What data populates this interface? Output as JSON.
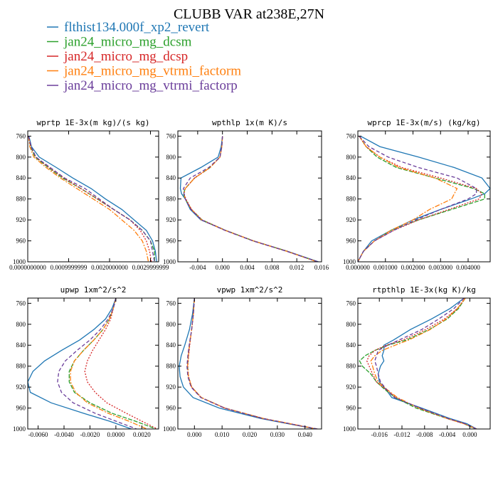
{
  "figure": {
    "title": "CLUBB VAR at238E,27N"
  },
  "legend": [
    {
      "name": "flthist134.000f_xp2_revert",
      "color": "#1f77b4",
      "dash": ""
    },
    {
      "name": "jan24_micro_mg_dcsm",
      "color": "#2ca02c",
      "dash": "6,2"
    },
    {
      "name": "jan24_micro_mg_dcsp",
      "color": "#d62728",
      "dash": "2,2"
    },
    {
      "name": "jan24_micro_mg_vtrmi_factorm",
      "color": "#ff7f0e",
      "dash": "7,2,2,2"
    },
    {
      "name": "jan24_micro_mg_vtrmi_factorp",
      "color": "#6a3d9a",
      "dash": "5,3"
    }
  ],
  "chart_data": [
    {
      "type": "line",
      "title": "wprtp  1E-3x(m kg)/(s kg)",
      "xlim": [
        0,
        0.0032
      ],
      "ylim": [
        1000,
        750
      ],
      "xticks": [
        0.0,
        0.001,
        0.002,
        0.003
      ],
      "xticklabels": [
        "0.0000000000",
        "0.0009999999",
        "0.0020000000",
        "0.0029999999"
      ],
      "yticks": [
        760,
        800,
        840,
        880,
        920,
        960,
        1000
      ],
      "y": [
        760,
        780,
        800,
        820,
        840,
        860,
        880,
        900,
        920,
        940,
        960,
        980,
        1000
      ],
      "series": [
        {
          "name": "flthist134.000f_xp2_revert",
          "values": [
            3e-05,
            9e-05,
            0.00028,
            0.0007,
            0.0011,
            0.00155,
            0.0019,
            0.0023,
            0.0026,
            0.0029,
            0.00305,
            0.00312,
            0.00315
          ]
        },
        {
          "name": "jan24_micro_mg_dcsm",
          "values": [
            2e-05,
            7e-05,
            0.00018,
            0.0005,
            0.00085,
            0.0013,
            0.0017,
            0.0021,
            0.0025,
            0.0028,
            0.003,
            0.0031,
            0.0031
          ]
        },
        {
          "name": "jan24_micro_mg_dcsp",
          "values": [
            2e-05,
            8e-05,
            0.0002,
            0.00052,
            0.00088,
            0.0013,
            0.0017,
            0.0021,
            0.0025,
            0.00275,
            0.0029,
            0.00298,
            0.00302
          ]
        },
        {
          "name": "jan24_micro_mg_vtrmi_factorm",
          "values": [
            2e-05,
            5e-05,
            0.00015,
            0.00045,
            0.0008,
            0.0012,
            0.0016,
            0.002,
            0.0023,
            0.0026,
            0.0028,
            0.0029,
            0.00295
          ]
        },
        {
          "name": "jan24_micro_mg_vtrmi_factorp",
          "values": [
            2e-05,
            8e-05,
            0.0002,
            0.00055,
            0.0009,
            0.0014,
            0.00175,
            0.0021,
            0.0025,
            0.0028,
            0.003,
            0.00305,
            0.0031
          ]
        }
      ]
    },
    {
      "type": "line",
      "title": "wpthlp  1x(m K)/s",
      "xlim": [
        -0.0072,
        0.016
      ],
      "ylim": [
        1000,
        750
      ],
      "xticks": [
        -0.004,
        0.0,
        0.004,
        0.008,
        0.012,
        0.016
      ],
      "xticklabels": [
        "-0.004",
        "0.000",
        "0.004",
        "0.008",
        "0.012",
        "0.016"
      ],
      "yticks": [
        760,
        800,
        840,
        880,
        920,
        960,
        1000
      ],
      "y": [
        760,
        780,
        800,
        820,
        840,
        860,
        870,
        880,
        900,
        920,
        940,
        960,
        980,
        1000
      ],
      "series": [
        {
          "name": "flthist134.000f_xp2_revert",
          "values": [
            0.0,
            -0.0002,
            -0.0007,
            -0.0035,
            -0.0067,
            -0.0068,
            -0.0066,
            -0.006,
            -0.0052,
            -0.0035,
            0.0005,
            0.005,
            0.0105,
            0.0155
          ]
        },
        {
          "name": "jan24_micro_mg_dcsm",
          "values": [
            0.0,
            -0.0001,
            -0.0004,
            -0.002,
            -0.0045,
            -0.006,
            -0.0063,
            -0.006,
            -0.005,
            -0.0033,
            0.0005,
            0.005,
            0.0105,
            0.0153
          ]
        },
        {
          "name": "jan24_micro_mg_dcsp",
          "values": [
            0.0,
            -0.0001,
            -0.0004,
            -0.002,
            -0.0045,
            -0.006,
            -0.0062,
            -0.0059,
            -0.005,
            -0.0033,
            0.0005,
            0.005,
            0.0105,
            0.0153
          ]
        },
        {
          "name": "jan24_micro_mg_vtrmi_factorm",
          "values": [
            0.0,
            -0.0001,
            -0.0004,
            -0.002,
            -0.0045,
            -0.006,
            -0.0062,
            -0.006,
            -0.005,
            -0.0034,
            0.0004,
            0.005,
            0.0104,
            0.0153
          ]
        },
        {
          "name": "jan24_micro_mg_vtrmi_factorp",
          "values": [
            0.0,
            -0.0001,
            -0.0004,
            -0.0022,
            -0.0052,
            -0.0063,
            -0.0062,
            -0.006,
            -0.0051,
            -0.0034,
            0.0004,
            0.0049,
            0.0104,
            0.0154
          ]
        }
      ]
    },
    {
      "type": "line",
      "title": "wprcp  1E-3x(m/s) (kg/kg)",
      "xlim": [
        0,
        0.0048
      ],
      "ylim": [
        1000,
        750
      ],
      "xticks": [
        0.0,
        0.001,
        0.002,
        0.003,
        0.004
      ],
      "xticklabels": [
        "0.000000",
        "0.001000",
        "0.002000",
        "0.003000",
        "0.004000"
      ],
      "yticks": [
        760,
        800,
        840,
        880,
        920,
        960,
        1000
      ],
      "y": [
        760,
        780,
        800,
        820,
        840,
        860,
        870,
        880,
        900,
        920,
        940,
        960,
        980,
        990,
        1000
      ],
      "series": [
        {
          "name": "flthist134.000f_xp2_revert",
          "values": [
            0.0001,
            0.0008,
            0.0022,
            0.0035,
            0.0045,
            0.0048,
            0.0046,
            0.0041,
            0.003,
            0.002,
            0.0012,
            0.0005,
            0.0002,
            0.0001,
            0.0
          ]
        },
        {
          "name": "jan24_micro_mg_dcsm",
          "values": [
            5e-05,
            0.0003,
            0.0007,
            0.0014,
            0.0028,
            0.0042,
            0.0046,
            0.0046,
            0.0034,
            0.0022,
            0.0012,
            0.0006,
            0.0002,
            0.0001,
            0.0
          ]
        },
        {
          "name": "jan24_micro_mg_dcsp",
          "values": [
            5e-05,
            0.0003,
            0.0008,
            0.0016,
            0.003,
            0.0043,
            0.0045,
            0.0044,
            0.0033,
            0.0022,
            0.0013,
            0.0006,
            0.0002,
            0.0001,
            0.0
          ]
        },
        {
          "name": "jan24_micro_mg_vtrmi_factorm",
          "values": [
            5e-05,
            0.0003,
            0.0008,
            0.0015,
            0.0028,
            0.0036,
            0.0035,
            0.0034,
            0.0026,
            0.002,
            0.0012,
            0.0006,
            0.0002,
            0.0001,
            0.0
          ]
        },
        {
          "name": "jan24_micro_mg_vtrmi_factorp",
          "values": [
            5e-05,
            0.0004,
            0.0011,
            0.0022,
            0.0036,
            0.0043,
            0.0043,
            0.004,
            0.003,
            0.0021,
            0.0013,
            0.0006,
            0.0002,
            0.0001,
            0.0
          ]
        }
      ]
    },
    {
      "type": "line",
      "title": "upwp  1xm^2/s^2",
      "xlim": [
        -0.0068,
        0.0033
      ],
      "ylim": [
        1000,
        750
      ],
      "xticks": [
        -0.006,
        -0.004,
        -0.002,
        0.0,
        0.002
      ],
      "xticklabels": [
        "-0.0060",
        "-0.0040",
        "-0.0020",
        "0.0000",
        "0.0020"
      ],
      "yticks": [
        760,
        800,
        840,
        880,
        920,
        960,
        1000
      ],
      "y": [
        750,
        770,
        790,
        810,
        830,
        850,
        870,
        890,
        910,
        930,
        950,
        970,
        985,
        1000
      ],
      "series": [
        {
          "name": "flthist134.000f_xp2_revert",
          "values": [
            0.0,
            -0.0003,
            -0.0008,
            -0.0017,
            -0.0028,
            -0.0042,
            -0.0055,
            -0.0064,
            -0.0068,
            -0.0066,
            -0.005,
            -0.0025,
            -0.0005,
            0.0012
          ]
        },
        {
          "name": "jan24_micro_mg_dcsm",
          "values": [
            0.0,
            -0.0002,
            -0.0005,
            -0.001,
            -0.0017,
            -0.0025,
            -0.0032,
            -0.0036,
            -0.0036,
            -0.0032,
            -0.002,
            -0.0003,
            0.0015,
            0.0031
          ]
        },
        {
          "name": "jan24_micro_mg_dcsp",
          "values": [
            0.0,
            -0.0002,
            -0.0004,
            -0.0008,
            -0.0013,
            -0.0018,
            -0.0022,
            -0.0024,
            -0.0022,
            -0.0016,
            -0.0007,
            0.0008,
            0.002,
            0.0032
          ]
        },
        {
          "name": "jan24_micro_mg_vtrmi_factorm",
          "values": [
            0.0,
            -0.0002,
            -0.0005,
            -0.001,
            -0.0017,
            -0.0025,
            -0.0032,
            -0.0035,
            -0.0035,
            -0.0031,
            -0.0022,
            -0.0006,
            0.001,
            0.0024
          ]
        },
        {
          "name": "jan24_micro_mg_vtrmi_factorp",
          "values": [
            0.0,
            -0.0002,
            -0.0006,
            -0.0012,
            -0.002,
            -0.003,
            -0.0039,
            -0.0044,
            -0.0045,
            -0.0042,
            -0.0033,
            -0.0016,
            0.0,
            0.0016
          ]
        }
      ]
    },
    {
      "type": "line",
      "title": "vpwp  1xm^2/s^2",
      "xlim": [
        -0.006,
        0.046
      ],
      "ylim": [
        1000,
        750
      ],
      "xticks": [
        0.0,
        0.01,
        0.02,
        0.03,
        0.04
      ],
      "xticklabels": [
        "0.000",
        "0.010",
        "0.020",
        "0.030",
        "0.040"
      ],
      "yticks": [
        760,
        800,
        840,
        880,
        920,
        960,
        1000
      ],
      "y": [
        750,
        780,
        810,
        840,
        860,
        880,
        900,
        920,
        940,
        960,
        980,
        1000
      ],
      "series": [
        {
          "name": "flthist134.000f_xp2_revert",
          "values": [
            0.0,
            -0.0007,
            -0.0018,
            -0.0035,
            -0.0048,
            -0.0055,
            -0.0052,
            -0.004,
            -0.0005,
            0.009,
            0.024,
            0.044
          ]
        },
        {
          "name": "jan24_micro_mg_dcsm",
          "values": [
            0.0,
            -0.0004,
            -0.001,
            -0.0018,
            -0.0022,
            -0.0025,
            -0.0022,
            -0.001,
            0.0025,
            0.011,
            0.025,
            0.044
          ]
        },
        {
          "name": "jan24_micro_mg_dcsp",
          "values": [
            0.0,
            -0.0004,
            -0.001,
            -0.0017,
            -0.0021,
            -0.0024,
            -0.0021,
            -0.001,
            0.0025,
            0.011,
            0.025,
            0.044
          ]
        },
        {
          "name": "jan24_micro_mg_vtrmi_factorm",
          "values": [
            0.0,
            -0.0004,
            -0.001,
            -0.0018,
            -0.0022,
            -0.0025,
            -0.0022,
            -0.001,
            0.0025,
            0.011,
            0.025,
            0.0445
          ]
        },
        {
          "name": "jan24_micro_mg_vtrmi_factorp",
          "values": [
            0.0,
            -0.0004,
            -0.001,
            -0.0019,
            -0.0024,
            -0.0027,
            -0.0024,
            -0.0012,
            0.0023,
            0.0108,
            0.0248,
            0.0445
          ]
        }
      ]
    },
    {
      "type": "line",
      "title": "rtpthlp  1E-3x(kg K)/kg",
      "xlim": [
        -0.0198,
        0.0036
      ],
      "ylim": [
        1000,
        750
      ],
      "xticks": [
        -0.016,
        -0.012,
        -0.008,
        -0.004,
        0.0
      ],
      "xticklabels": [
        "-0.016",
        "-0.012",
        "-0.008",
        "-0.004",
        "0.000"
      ],
      "yticks": [
        760,
        800,
        840,
        880,
        920,
        960,
        1000
      ],
      "y": [
        750,
        770,
        790,
        810,
        830,
        840,
        850,
        860,
        870,
        880,
        895,
        910,
        925,
        940,
        960,
        980,
        990,
        1000
      ],
      "series": [
        {
          "name": "flthist134.000f_xp2_revert",
          "values": [
            -0.001,
            -0.0035,
            -0.0068,
            -0.0105,
            -0.0135,
            -0.0152,
            -0.0152,
            -0.0155,
            -0.0152,
            -0.0158,
            -0.0162,
            -0.016,
            -0.0148,
            -0.0138,
            -0.0085,
            -0.0035,
            -0.0005,
            0.0012
          ]
        },
        {
          "name": "jan24_micro_mg_dcsm",
          "values": [
            -0.0008,
            -0.002,
            -0.004,
            -0.0072,
            -0.0112,
            -0.0145,
            -0.0168,
            -0.0185,
            -0.0195,
            -0.019,
            -0.0175,
            -0.0165,
            -0.015,
            -0.0132,
            -0.0095,
            -0.004,
            -0.001,
            0.001
          ]
        },
        {
          "name": "jan24_micro_mg_dcsp",
          "values": [
            -0.0008,
            -0.0022,
            -0.0045,
            -0.0078,
            -0.0118,
            -0.0148,
            -0.0168,
            -0.0178,
            -0.0182,
            -0.0178,
            -0.0172,
            -0.0165,
            -0.0148,
            -0.013,
            -0.009,
            -0.004,
            -0.001,
            0.0012
          ]
        },
        {
          "name": "jan24_micro_mg_vtrmi_factorm",
          "values": [
            -0.0008,
            -0.0022,
            -0.0042,
            -0.007,
            -0.0108,
            -0.0132,
            -0.0155,
            -0.0168,
            -0.0175,
            -0.0172,
            -0.0168,
            -0.0162,
            -0.0146,
            -0.0128,
            -0.009,
            -0.004,
            -0.001,
            0.0012
          ]
        },
        {
          "name": "jan24_micro_mg_vtrmi_factorp",
          "values": [
            -0.001,
            -0.0028,
            -0.0055,
            -0.0085,
            -0.0125,
            -0.0145,
            -0.0162,
            -0.0165,
            -0.0168,
            -0.0165,
            -0.0162,
            -0.0158,
            -0.0147,
            -0.0133,
            -0.0088,
            -0.0038,
            -0.0008,
            0.0012
          ]
        }
      ]
    }
  ]
}
